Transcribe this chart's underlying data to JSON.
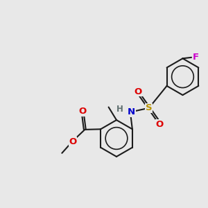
{
  "bg_color": "#e8e8e8",
  "bond_color": "#1c1c1c",
  "bond_width": 1.5,
  "colors": {
    "N": "#0000cc",
    "O": "#dd0000",
    "S": "#b89400",
    "F": "#cc00cc",
    "H": "#607070"
  },
  "font_size": 9.5
}
